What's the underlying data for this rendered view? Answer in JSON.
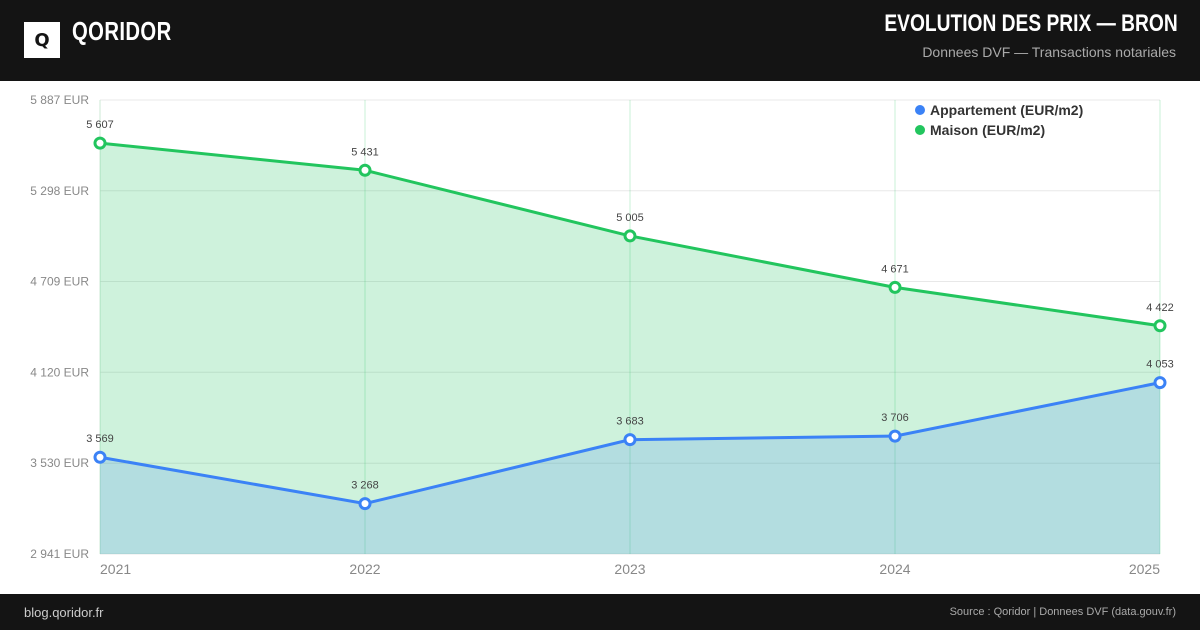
{
  "header": {
    "logo_letter": "Q",
    "brand": "QORIDOR",
    "title": "EVOLUTION DES PRIX — BRON",
    "subtitle": "Donnees DVF — Transactions notariales"
  },
  "footer": {
    "site": "blog.qoridor.fr",
    "source": "Source : Qoridor | Donnees DVF (data.gouv.fr)"
  },
  "chart_data": {
    "type": "area",
    "title": "EVOLUTION DES PRIX — BRON",
    "x": [
      "2021",
      "2022",
      "2023",
      "2024",
      "2025"
    ],
    "ylim": [
      2941,
      5887
    ],
    "yticks": [
      2941,
      3530,
      4120,
      4709,
      5298,
      5887
    ],
    "ytick_labels": [
      "2 941 EUR",
      "3 530 EUR",
      "4 120 EUR",
      "4 709 EUR",
      "5 298 EUR",
      "5 887 EUR"
    ],
    "legend_position": "top-right",
    "grid": true,
    "series": [
      {
        "name": "Appartement (EUR/m2)",
        "color": "#3b82f6",
        "values": [
          3569,
          3268,
          3683,
          3706,
          4053
        ],
        "labels": [
          "3 569",
          "3 268",
          "3 683",
          "3 706",
          "4 053"
        ]
      },
      {
        "name": "Maison (EUR/m2)",
        "color": "#22c55e",
        "values": [
          5607,
          5431,
          5005,
          4671,
          4422
        ],
        "labels": [
          "5 607",
          "5 431",
          "5 005",
          "4 671",
          "4 422"
        ]
      }
    ]
  }
}
